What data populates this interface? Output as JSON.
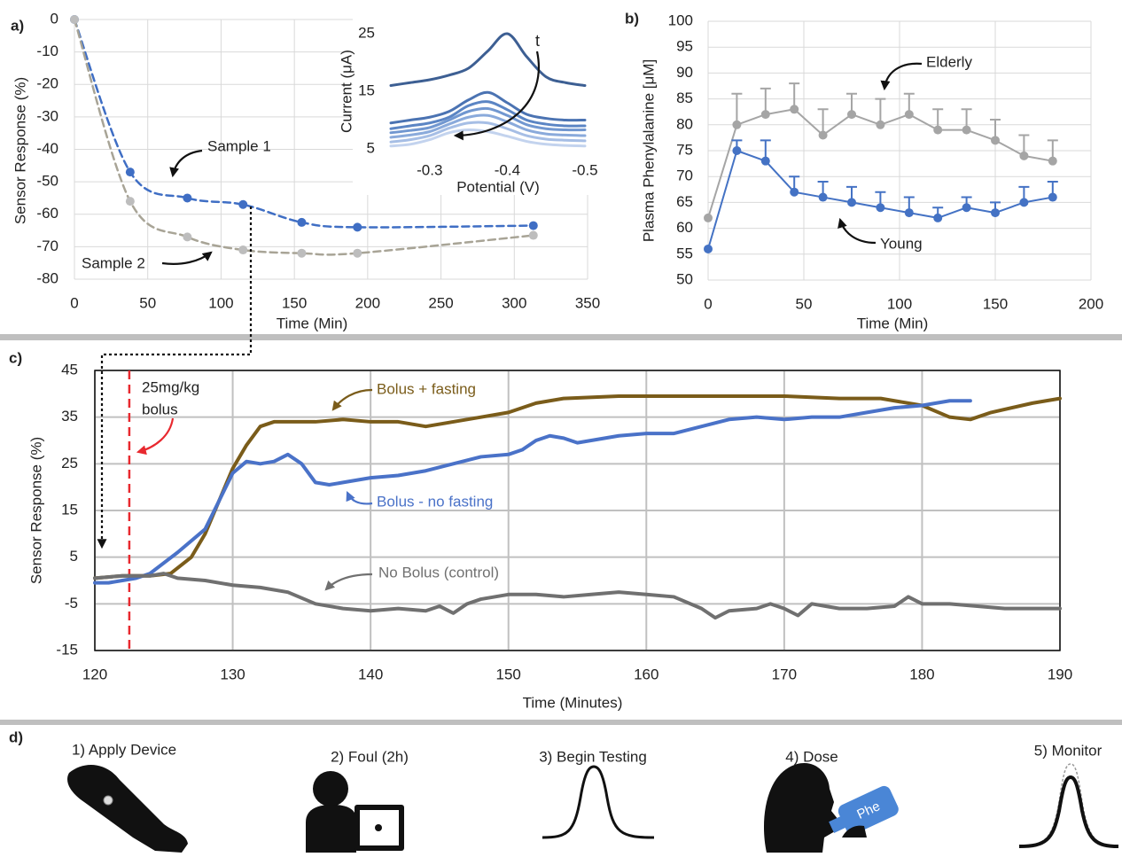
{
  "chart_data": [
    {
      "type": "scatter",
      "panel_label": "a)",
      "xlabel": "Time (Min)",
      "ylabel": "Sensor Response (%)",
      "xlim": [
        0,
        350
      ],
      "xticks": [
        0,
        50,
        100,
        150,
        200,
        250,
        300,
        350
      ],
      "ylim": [
        -80,
        0
      ],
      "yticks": [
        0,
        -10,
        -20,
        -30,
        -40,
        -50,
        -60,
        -70,
        -80
      ],
      "grid": true,
      "line_style": "dashed",
      "series": [
        {
          "name": "Sample 1",
          "color": "#3f6ec4",
          "x": [
            0,
            38,
            77,
            115,
            155,
            193,
            313
          ],
          "values": [
            0,
            -47,
            -55,
            -57,
            -62.5,
            -64,
            -63.5
          ]
        },
        {
          "name": "Sample 2",
          "color": "#a8a496",
          "x": [
            0,
            38,
            77,
            115,
            155,
            193,
            313
          ],
          "values": [
            0,
            -56,
            -67,
            -71,
            -72,
            -72,
            -66.5
          ]
        }
      ]
    },
    {
      "type": "line",
      "xlabel": "Potential (V)",
      "ylabel": "Current (μA)",
      "annotation": "t",
      "xlim": [
        -0.25,
        -0.5
      ],
      "xticks": [
        -0.3,
        -0.4,
        -0.5
      ],
      "ylim": [
        5,
        25
      ],
      "yticks": [
        5,
        15,
        25
      ],
      "x": [
        -0.25,
        -0.275,
        -0.3,
        -0.325,
        -0.35,
        -0.375,
        -0.4,
        -0.425,
        -0.45,
        -0.475,
        -0.5
      ],
      "series": [
        {
          "color": "#3d5f93",
          "values": [
            16,
            16.5,
            17,
            17.8,
            19,
            22,
            25,
            21,
            17.5,
            16.5,
            16
          ]
        },
        {
          "color": "#4b73b2",
          "values": [
            9.5,
            10,
            10.5,
            11.5,
            13.5,
            14.8,
            13,
            11,
            10.3,
            10,
            10
          ]
        },
        {
          "color": "#5b85c4",
          "values": [
            8.5,
            9,
            9.5,
            10.5,
            12.5,
            13.2,
            11.8,
            10,
            9.3,
            9,
            9
          ]
        },
        {
          "color": "#7197d0",
          "values": [
            7.8,
            8.2,
            8.7,
            10,
            11.5,
            12,
            10.8,
            9.2,
            8.5,
            8.3,
            8.3
          ]
        },
        {
          "color": "#8aaadb",
          "values": [
            7,
            7.4,
            8,
            9.3,
            10.5,
            10.8,
            9.7,
            8.3,
            7.6,
            7.4,
            7.3
          ]
        },
        {
          "color": "#a6bee5",
          "values": [
            6.2,
            6.6,
            7.3,
            8.6,
            9.5,
            9.5,
            8.5,
            7.3,
            6.7,
            6.5,
            6.4
          ]
        },
        {
          "color": "#c3d3ee",
          "values": [
            5.5,
            5.8,
            6.6,
            7.8,
            8.3,
            8,
            7.2,
            6.3,
            5.8,
            5.6,
            5.5
          ]
        }
      ]
    },
    {
      "type": "line",
      "panel_label": "b)",
      "xlabel": "Time (Min)",
      "ylabel": "Plasma Phenylalanine [μM]",
      "xlim": [
        0,
        200
      ],
      "xticks": [
        0,
        50,
        100,
        150,
        200
      ],
      "ylim": [
        50,
        100
      ],
      "yticks": [
        50,
        55,
        60,
        65,
        70,
        75,
        80,
        85,
        90,
        95,
        100
      ],
      "grid": true,
      "point_markers": true,
      "x": [
        0,
        15,
        30,
        45,
        60,
        75,
        90,
        105,
        120,
        135,
        150,
        165,
        180
      ],
      "series": [
        {
          "name": "Elderly",
          "color": "#a5a5a5",
          "values": [
            62,
            80,
            82,
            83,
            78,
            82,
            80,
            82,
            79,
            79,
            77,
            74,
            73
          ],
          "errors": [
            null,
            6,
            5,
            5,
            5,
            4,
            5,
            4,
            4,
            4,
            4,
            4,
            4
          ]
        },
        {
          "name": "Young",
          "color": "#4472c4",
          "values": [
            56,
            75,
            73,
            67,
            66,
            65,
            64,
            63,
            62,
            64,
            63,
            65,
            66
          ],
          "errors": [
            null,
            2,
            4,
            3,
            3,
            3,
            3,
            3,
            2,
            2,
            2,
            3,
            3
          ]
        }
      ]
    },
    {
      "type": "line",
      "panel_label": "c)",
      "xlabel": "Time (Minutes)",
      "ylabel": "Sensor Response (%)",
      "xlim": [
        120,
        190
      ],
      "xticks": [
        120,
        130,
        140,
        150,
        160,
        170,
        180,
        190
      ],
      "ylim": [
        -15,
        45
      ],
      "yticks": [
        -15,
        -5,
        5,
        15,
        25,
        35,
        45
      ],
      "grid": true,
      "frame": true,
      "markers": [
        {
          "x": 122.5,
          "color": "#e8292f",
          "label": [
            "25mg/kg",
            "bolus"
          ]
        }
      ],
      "series": [
        {
          "name": "Bolus + fasting",
          "color": "#7a5c1a",
          "x": [
            120,
            122,
            124,
            125.5,
            127,
            128,
            129,
            130,
            131,
            132,
            133,
            136,
            138,
            140,
            142,
            144,
            146,
            148,
            150,
            152,
            154,
            158,
            162,
            166,
            170,
            174,
            177,
            180,
            182,
            183.5,
            185,
            188,
            190
          ],
          "values": [
            0.5,
            1,
            1,
            1.5,
            5,
            10,
            17,
            24,
            29,
            33,
            34,
            34,
            34.5,
            34,
            34,
            33,
            34,
            35,
            36,
            38,
            39,
            39.5,
            39.5,
            39.5,
            39.5,
            39,
            39,
            37.5,
            35,
            34.5,
            36,
            38,
            39
          ]
        },
        {
          "name": "Bolus - no fasting",
          "color": "#4a72c8",
          "x": [
            120,
            121,
            122,
            123,
            124,
            126,
            128,
            129,
            130,
            131,
            132,
            133,
            134,
            135,
            136,
            137,
            138,
            140,
            142,
            144,
            146,
            148,
            150,
            151,
            152,
            153,
            154,
            155,
            156,
            158,
            160,
            162,
            164,
            166,
            168,
            170,
            172,
            174,
            176,
            178,
            180,
            182,
            183.5
          ],
          "values": [
            -0.5,
            -0.5,
            0,
            0.5,
            1.5,
            6,
            11,
            17,
            23,
            25.5,
            25,
            25.5,
            27,
            25,
            21,
            20.5,
            21,
            22,
            22.5,
            23.5,
            25,
            26.5,
            27,
            28,
            30,
            31,
            30.5,
            29.5,
            30,
            31,
            31.5,
            31.5,
            33,
            34.5,
            35,
            34.5,
            35,
            35,
            36,
            37,
            37.5,
            38.5,
            38.5
          ]
        },
        {
          "name": "No Bolus (control)",
          "color": "#707070",
          "x": [
            120,
            122,
            124,
            125,
            126,
            128,
            130,
            132,
            134,
            136,
            138,
            140,
            142,
            144,
            145,
            146,
            147,
            148,
            150,
            152,
            154,
            156,
            158,
            160,
            162,
            164,
            165,
            166,
            168,
            169,
            170,
            171,
            172,
            173,
            174,
            176,
            178,
            179,
            180,
            182,
            184,
            186,
            188,
            190
          ],
          "values": [
            0.5,
            1,
            1,
            1.5,
            0.5,
            0,
            -1,
            -1.5,
            -2.5,
            -5,
            -6,
            -6.5,
            -6,
            -6.5,
            -5.5,
            -7,
            -5,
            -4,
            -3,
            -3,
            -3.5,
            -3,
            -2.5,
            -3,
            -3.5,
            -6,
            -8,
            -6.5,
            -6,
            -5,
            -6,
            -7.5,
            -5,
            -5.5,
            -6,
            -6,
            -5.5,
            -3.5,
            -5,
            -5,
            -5.5,
            -6,
            -6,
            -6
          ]
        }
      ]
    }
  ],
  "workflow": {
    "label": "d)",
    "steps": [
      "1) Apply Device",
      "2) Foul (2h)",
      "3) Begin Testing",
      "4) Dose",
      "5) Monitor"
    ],
    "bottle_label": "Phe"
  }
}
